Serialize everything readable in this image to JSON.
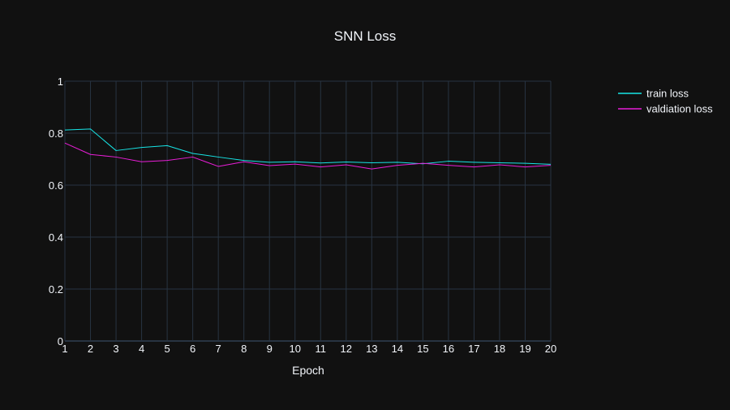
{
  "chart_data": {
    "type": "line",
    "title": "SNN Loss",
    "xlabel": "Epoch",
    "ylabel": "",
    "x": [
      1,
      2,
      3,
      4,
      5,
      6,
      7,
      8,
      9,
      10,
      11,
      12,
      13,
      14,
      15,
      16,
      17,
      18,
      19,
      20
    ],
    "xlim": [
      1,
      20
    ],
    "ylim": [
      0,
      1
    ],
    "x_ticks": [
      "1",
      "2",
      "3",
      "4",
      "5",
      "6",
      "7",
      "8",
      "9",
      "10",
      "11",
      "12",
      "13",
      "14",
      "15",
      "16",
      "17",
      "18",
      "19",
      "20"
    ],
    "y_ticks": [
      "0",
      "0.2",
      "0.4",
      "0.6",
      "0.8",
      "1"
    ],
    "grid": true,
    "legend_position": "top-right",
    "series": [
      {
        "name": "train loss",
        "color": "#17e5e6",
        "values": [
          0.812,
          0.816,
          0.733,
          0.745,
          0.752,
          0.722,
          0.708,
          0.695,
          0.688,
          0.69,
          0.685,
          0.689,
          0.686,
          0.688,
          0.682,
          0.692,
          0.688,
          0.686,
          0.684,
          0.68
        ]
      },
      {
        "name": "valdiation loss",
        "color": "#e91ed7",
        "values": [
          0.762,
          0.718,
          0.708,
          0.69,
          0.695,
          0.708,
          0.672,
          0.69,
          0.675,
          0.681,
          0.67,
          0.678,
          0.662,
          0.676,
          0.684,
          0.676,
          0.67,
          0.678,
          0.67,
          0.676
        ]
      }
    ]
  },
  "colors": {
    "background": "#111111",
    "grid": "#283442",
    "text": "#f2f5fa",
    "zeroline": "#283442"
  }
}
